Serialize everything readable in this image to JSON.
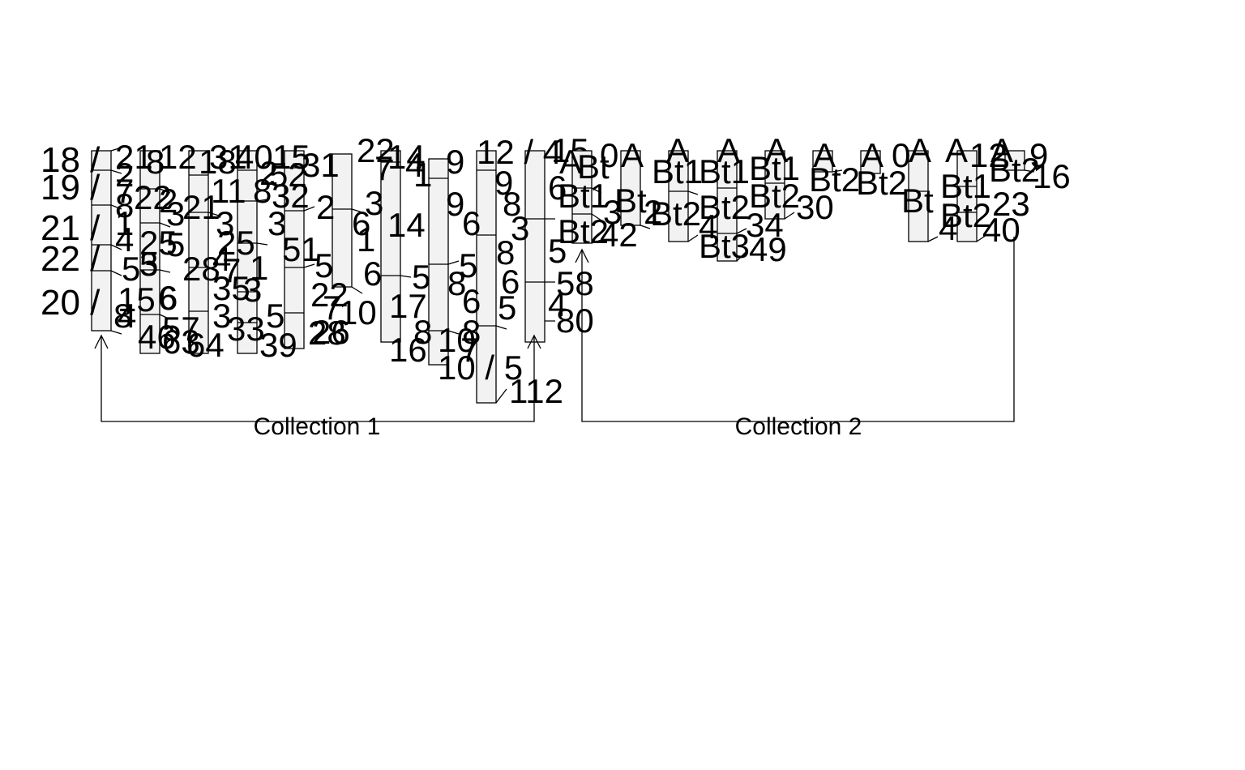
{
  "diagram": {
    "collections": [
      {
        "name": "Collection 1"
      },
      {
        "name": "Collection 2"
      }
    ],
    "collection1": {
      "labels": [
        "18 /",
        "19 /",
        "21 /",
        "22 /",
        "20 /",
        "21",
        "2",
        "8",
        "4",
        "5",
        "1",
        "7",
        "5",
        "15",
        "3",
        "4",
        "6",
        "25",
        "8",
        "8",
        "12",
        "22",
        "3",
        "21",
        "18",
        "2",
        "28",
        "5",
        "4",
        "35",
        "6",
        "3",
        "46",
        "57",
        "31",
        "40",
        "11",
        "2",
        "8",
        "3",
        "1",
        "25",
        "7",
        "3",
        "3",
        "5",
        "63",
        "64",
        "33",
        "39",
        "15",
        "52",
        "32",
        "31",
        "51",
        "2",
        "6",
        "5",
        "1",
        "22",
        "7",
        "28",
        "26",
        "22",
        "3",
        "7",
        "6",
        "10",
        "14",
        "17",
        "5",
        "16",
        "14",
        "1",
        "4",
        "9",
        "9",
        "6",
        "5",
        "8",
        "6",
        "8",
        "8",
        "7",
        "10",
        "10 / 5",
        "12 / 4",
        "9",
        "8",
        "3",
        "8",
        "6",
        "5",
        "112",
        "15",
        "6",
        "5",
        "58",
        "4",
        "80"
      ]
    },
    "collection2": {
      "labels": [
        "A",
        "Bt",
        "0",
        "Bt1",
        "Bt2",
        "42",
        "3",
        "A",
        "Bt",
        "2",
        "A",
        "Bt1",
        "Bt2",
        "4",
        "A",
        "Bt1",
        "Bt2",
        "34",
        "Bt3",
        "49",
        "A",
        "Bt1",
        "Bt2",
        "30",
        "A",
        "Bt2",
        "A",
        "Bt2",
        "0",
        "A",
        "Bt",
        "A",
        "Bt1",
        "Bt2",
        "4",
        "A",
        "Bt2",
        "23",
        "40",
        "12",
        "16",
        "9"
      ]
    }
  }
}
